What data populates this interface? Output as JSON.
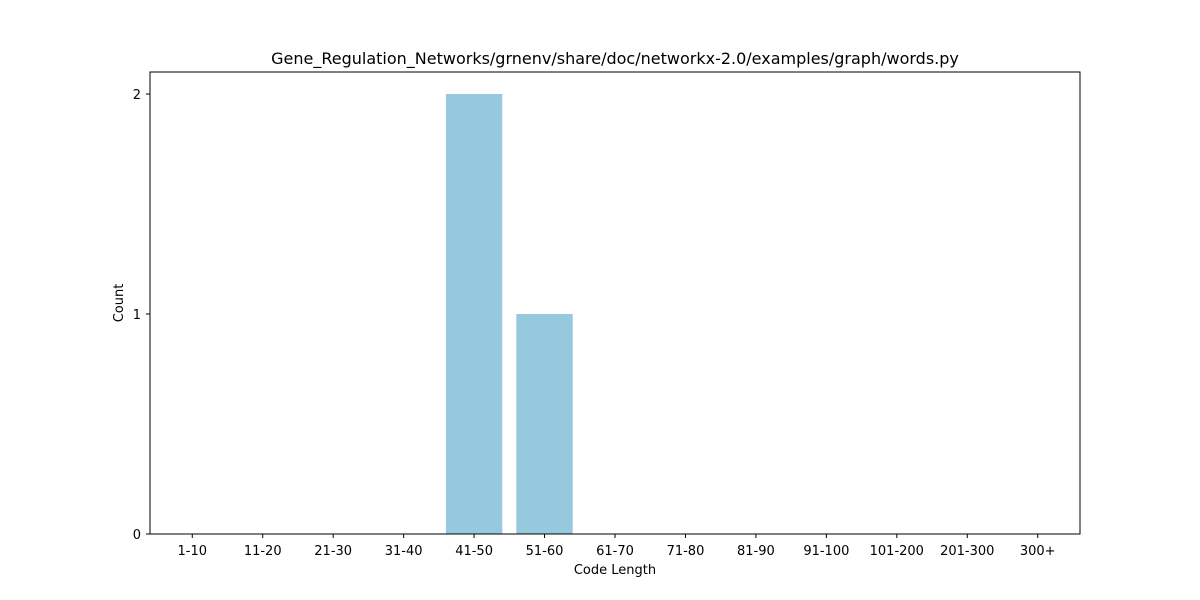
{
  "chart_data": {
    "type": "bar",
    "title": "Gene_Regulation_Networks/grnenv/share/doc/networkx-2.0/examples/graph/words.py",
    "xlabel": "Code Length",
    "ylabel": "Count",
    "categories": [
      "1-10",
      "11-20",
      "21-30",
      "31-40",
      "41-50",
      "51-60",
      "61-70",
      "71-80",
      "81-90",
      "91-100",
      "101-200",
      "201-300",
      "300+"
    ],
    "values": [
      0,
      0,
      0,
      0,
      2,
      1,
      0,
      0,
      0,
      0,
      0,
      0,
      0
    ],
    "ylim": [
      0,
      2.1
    ],
    "yticks": [
      0,
      1,
      2
    ],
    "bar_color": "#96c9dd",
    "grid": false
  }
}
